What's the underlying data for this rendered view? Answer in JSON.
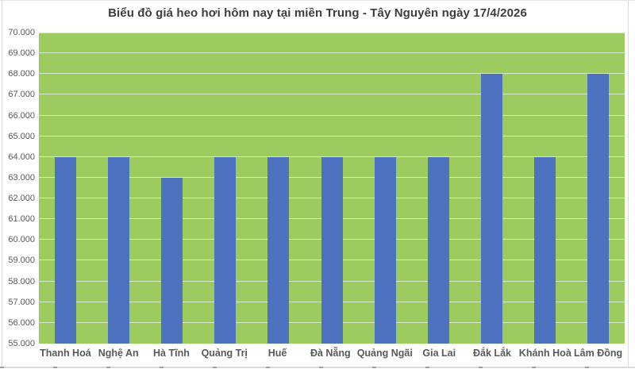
{
  "chart_data": {
    "type": "bar",
    "title": "Biểu đồ giá heo hơi hôm nay tại miền Trung - Tây Nguyên ngày 17/4/2026",
    "categories": [
      "Thanh Hoá",
      "Nghệ An",
      "Hà Tĩnh",
      "Quảng Trị",
      "Huế",
      "Đà Nẵng",
      "Quảng Ngãi",
      "Gia Lai",
      "Đắk Lắk",
      "Khánh Hoà",
      "Lâm Đồng"
    ],
    "values": [
      64000,
      64000,
      63000,
      64000,
      64000,
      64000,
      64000,
      64000,
      68000,
      64000,
      68000
    ],
    "xlabel": "",
    "ylabel": "",
    "ylim": [
      55000,
      70000
    ],
    "ytick_step": 1000,
    "ytick_labels": [
      "55.000",
      "56.000",
      "57.000",
      "58.000",
      "59.000",
      "60.000",
      "61.000",
      "62.000",
      "63.000",
      "64.000",
      "65.000",
      "66.000",
      "67.000",
      "68.000",
      "69.000",
      "70.000"
    ],
    "grid": true,
    "legend_visible": false
  },
  "colors": {
    "plot_bg": "#9CCB60",
    "bar": "#4D73C0",
    "gridline": "#D8E7C5",
    "title_text": "#3D3D3D",
    "axis_text": "#595959"
  }
}
